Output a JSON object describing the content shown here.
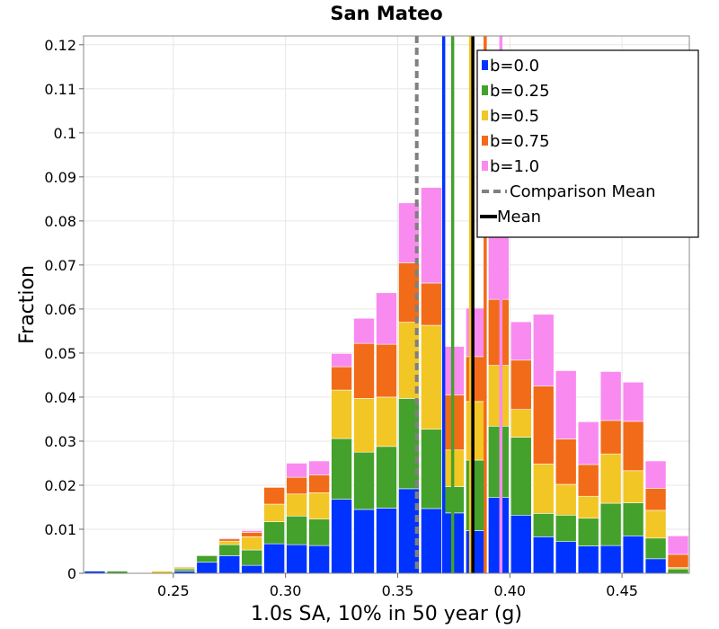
{
  "chart_data": {
    "type": "bar",
    "stacked": true,
    "title": "San Mateo",
    "xlabel": "1.0s SA, 10% in 50 year (g)",
    "ylabel": "Fraction",
    "xlim": [
      0.21,
      0.48
    ],
    "ylim": [
      0,
      0.122
    ],
    "bin_width": 0.01,
    "x_ticks": [
      0.25,
      0.3,
      0.35,
      0.4,
      0.45
    ],
    "x_tick_labels": [
      "0.25",
      "0.30",
      "0.35",
      "0.40",
      "0.45"
    ],
    "y_ticks": [
      0,
      0.01,
      0.02,
      0.03,
      0.04,
      0.05,
      0.06,
      0.07,
      0.08,
      0.09,
      0.1,
      0.11,
      0.12
    ],
    "y_tick_labels": [
      "0",
      "0.01",
      "0.02",
      "0.03",
      "0.04",
      "0.05",
      "0.06",
      "0.07",
      "0.08",
      "0.09",
      "0.1",
      "0.11",
      "0.12"
    ],
    "grid": true,
    "legend_position": "top-right",
    "bin_centers": [
      0.215,
      0.225,
      0.235,
      0.245,
      0.255,
      0.265,
      0.275,
      0.285,
      0.295,
      0.305,
      0.315,
      0.325,
      0.335,
      0.345,
      0.355,
      0.365,
      0.375,
      0.385,
      0.395,
      0.405,
      0.415,
      0.425,
      0.435,
      0.445,
      0.455,
      0.465,
      0.475
    ],
    "series": [
      {
        "name": "b=0.0",
        "color": "#0033ff",
        "values": [
          0.0005,
          0,
          0,
          0,
          0.0005,
          0.0025,
          0.004,
          0.0018,
          0.0067,
          0.0065,
          0.0063,
          0.0168,
          0.0145,
          0.0148,
          0.0192,
          0.0147,
          0.0137,
          0.0097,
          0.0172,
          0.0132,
          0.0083,
          0.0072,
          0.0062,
          0.0063,
          0.0085,
          0.0033,
          0
        ]
      },
      {
        "name": "b=0.25",
        "color": "#44a12b",
        "values": [
          0,
          0.0005,
          0,
          0,
          0.0005,
          0.0015,
          0.0025,
          0.0035,
          0.005,
          0.0065,
          0.006,
          0.0138,
          0.013,
          0.014,
          0.0205,
          0.018,
          0.006,
          0.016,
          0.0162,
          0.0177,
          0.0053,
          0.006,
          0.0063,
          0.0096,
          0.0075,
          0.0047,
          0.001
        ]
      },
      {
        "name": "b=0.5",
        "color": "#f2c624",
        "values": [
          0,
          0,
          0,
          0.0005,
          0.0003,
          0,
          0.0008,
          0.003,
          0.004,
          0.005,
          0.006,
          0.011,
          0.0122,
          0.0112,
          0.0173,
          0.0236,
          0.0083,
          0.0133,
          0.0138,
          0.0063,
          0.0112,
          0.007,
          0.005,
          0.0112,
          0.0073,
          0.0063,
          0.0003
        ]
      },
      {
        "name": "b=0.75",
        "color": "#f26b18",
        "values": [
          0,
          0,
          0,
          0,
          0.0002,
          0,
          0.0005,
          0.001,
          0.0038,
          0.0038,
          0.004,
          0.0053,
          0.0125,
          0.012,
          0.0135,
          0.0096,
          0.0125,
          0.0102,
          0.015,
          0.0112,
          0.0177,
          0.0103,
          0.0072,
          0.0076,
          0.0112,
          0.005,
          0.003
        ]
      },
      {
        "name": "b=1.0",
        "color": "#f98af0",
        "values": [
          0,
          0,
          0,
          0,
          0,
          0,
          0.0002,
          0.0004,
          0,
          0.0032,
          0.0032,
          0.003,
          0.0057,
          0.0117,
          0.0136,
          0.0217,
          0.011,
          0.011,
          0.0279,
          0.0087,
          0.0163,
          0.0155,
          0.0097,
          0.0111,
          0.0089,
          0.0062,
          0.0042
        ]
      }
    ],
    "vertical_lines": [
      {
        "series": "b=0.0",
        "x": 0.3705,
        "color": "#0033ff",
        "style": "solid"
      },
      {
        "series": "b=0.25",
        "x": 0.3745,
        "color": "#44a12b",
        "style": "solid"
      },
      {
        "series": "b=0.5",
        "x": 0.3825,
        "color": "#f2c624",
        "style": "solid"
      },
      {
        "series": "b=0.75",
        "x": 0.389,
        "color": "#f26b18",
        "style": "solid"
      },
      {
        "series": "b=1.0",
        "x": 0.396,
        "color": "#f98af0",
        "style": "solid"
      },
      {
        "series": "Comparison Mean",
        "x": 0.3585,
        "color": "#808080",
        "style": "dashed"
      },
      {
        "series": "Mean",
        "x": 0.3835,
        "color": "#000000",
        "style": "solid"
      }
    ],
    "legend": [
      {
        "label": "b=0.0",
        "kind": "box",
        "color": "#0033ff"
      },
      {
        "label": "b=0.25",
        "kind": "box",
        "color": "#44a12b"
      },
      {
        "label": "b=0.5",
        "kind": "box",
        "color": "#f2c624"
      },
      {
        "label": "b=0.75",
        "kind": "box",
        "color": "#f26b18"
      },
      {
        "label": "b=1.0",
        "kind": "box",
        "color": "#f98af0"
      },
      {
        "label": "Comparison Mean",
        "kind": "dashed",
        "color": "#808080"
      },
      {
        "label": "Mean",
        "kind": "line",
        "color": "#000000"
      }
    ]
  }
}
